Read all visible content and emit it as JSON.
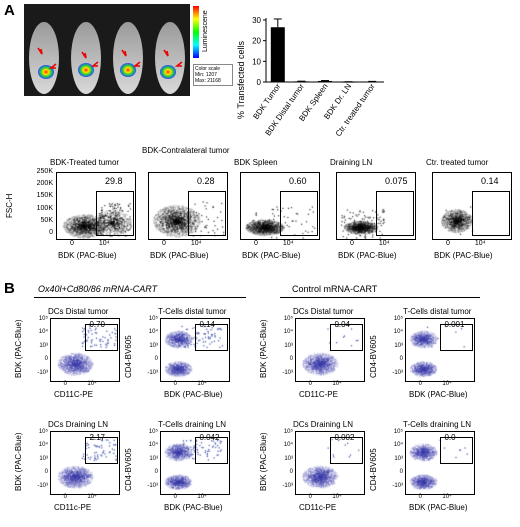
{
  "panel_a_label": "A",
  "panel_b_label": "B",
  "imaging": {
    "colorbar_title": "Luminescene",
    "color_scale_label": "Color scale",
    "color_min": "Min: 1207",
    "color_max": "Max: 21168"
  },
  "chart_data": {
    "type": "bar",
    "ylabel": "% Transfected cells",
    "yticks": [
      "0",
      "10",
      "20",
      "30"
    ],
    "ylim": [
      0,
      30
    ],
    "categories": [
      "BDK Tumor",
      "BDK Distal tumor",
      "BDK Spleen",
      "BDK Dr. LN",
      "Ctr. treated tumor"
    ],
    "values": [
      26.5,
      0.3,
      0.5,
      0.1,
      0.2
    ],
    "errors": [
      4.0,
      0.1,
      0.2,
      0.05,
      0.1
    ],
    "bar_color": "#000000"
  },
  "flow_a": {
    "y_axis_label": "FSC-H",
    "y_ticks": [
      "250K",
      "200K",
      "150K",
      "100K",
      "50K",
      "0"
    ],
    "x_axis_label": "BDK (PAC-Blue)",
    "x_ticks": [
      "0",
      "10⁴"
    ],
    "panels": [
      {
        "title": "BDK-Treated tumor",
        "value": "29.8"
      },
      {
        "title": "BDK-Contralateral tumor",
        "value": "0.28"
      },
      {
        "title": "BDK Spleen",
        "value": "0.60"
      },
      {
        "title": "Draining LN",
        "value": "0.075"
      },
      {
        "title": "Ctr. treated tumor",
        "value": "0.14"
      }
    ]
  },
  "flow_b": {
    "left_group_title": "Ox40l+Cd80/86 mRNA-CART",
    "right_group_title": "Control mRNA-CART",
    "ticks_y": [
      "10⁵",
      "10⁴",
      "10³",
      "0",
      "-10³"
    ],
    "ticks_x": [
      "0",
      "10⁴"
    ],
    "panels": [
      {
        "title": "DCs Distal tumor",
        "value": "0.70",
        "ylabel": "BDK (PAC-Blue)",
        "xlabel": "CD11C-PE"
      },
      {
        "title": "T-Cells distal tumor",
        "value": "0.14",
        "ylabel": "CD4-BV605",
        "xlabel": "BDK (PAC-Blue)"
      },
      {
        "title": "DCs Distal tumor",
        "value": "0.04",
        "ylabel": "BDK (PAC-Blue)",
        "xlabel": "CD11C-PE"
      },
      {
        "title": "T-Cells distal tumor",
        "value": "0.001",
        "ylabel": "CD4-BV605",
        "xlabel": "BDK (PAC-Blue)"
      },
      {
        "title": "DCs Draining LN",
        "value": "2.17",
        "ylabel": "BDK (PAC-Blue)",
        "xlabel": "CD11c-PE"
      },
      {
        "title": "T-Cells draining LN",
        "value": "0.042",
        "ylabel": "CD4-BV605",
        "xlabel": "BDK (PAC-Blue)"
      },
      {
        "title": "DCs Draining LN",
        "value": "0.002",
        "ylabel": "BDK (PAC-Blue)",
        "xlabel": "CD11c-PE"
      },
      {
        "title": "T-Cells draining LN",
        "value": "0.0",
        "ylabel": "CD4-BV605",
        "xlabel": "BDK (PAC-Blue)"
      }
    ]
  }
}
